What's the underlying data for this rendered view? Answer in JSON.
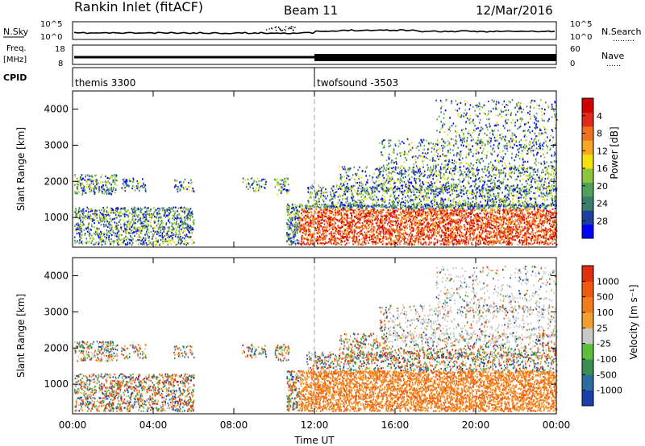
{
  "header": {
    "title": "Rankin Inlet (fitACF)",
    "beam": "Beam 11",
    "date": "12/Mar/2016"
  },
  "aux_panels": {
    "nsky_label": "N.Sky",
    "nsearch_label": "N.Search",
    "nsearch_dots": "………",
    "noise_ticks": [
      "10^5",
      "10^0"
    ],
    "freq_label_line1": "Freq.",
    "freq_label_line2": "[MHz]",
    "freq_ticks": [
      "18",
      "8"
    ],
    "nave_label": "Nave",
    "nave_dots": "……",
    "nave_ticks": [
      "60",
      "0"
    ],
    "cpid_label": "CPID",
    "cpid_1": "themis 3300",
    "cpid_2": "twofsound -3503"
  },
  "chart_data": [
    {
      "type": "heatmap",
      "title": "",
      "ylabel": "Slant Range [km]",
      "xlabel": "",
      "x_ticks": [
        "00:00",
        "04:00",
        "08:00",
        "12:00",
        "16:00",
        "20:00",
        "00:00"
      ],
      "y_ticks": [
        1000,
        2000,
        3000,
        4000
      ],
      "ylim": [
        180,
        4500
      ],
      "colorbar": {
        "label": "Power [dB]",
        "ticks": [
          "4",
          "8",
          "12",
          "16",
          "20",
          "24",
          "28"
        ],
        "colors": [
          "#0000ff",
          "#1f3f9f",
          "#3a7d6a",
          "#52a05f",
          "#8cc63f",
          "#f2e20f",
          "#f5a623",
          "#f07020",
          "#e02a1c",
          "#d00000"
        ]
      }
    },
    {
      "type": "heatmap",
      "title": "",
      "ylabel": "Slant Range [km]",
      "xlabel": "Time UT",
      "x_ticks": [
        "00:00",
        "04:00",
        "08:00",
        "12:00",
        "16:00",
        "20:00",
        "00:00"
      ],
      "y_ticks": [
        1000,
        2000,
        3000,
        4000
      ],
      "ylim": [
        180,
        4500
      ],
      "colorbar": {
        "label": "Velocity [m s⁻¹]",
        "ticks": [
          "1000",
          "500",
          "100",
          "25",
          "-25",
          "-100",
          "-500",
          "-1000"
        ],
        "colors": [
          "#1a3fa8",
          "#2c6e9e",
          "#3b8d55",
          "#5bbf3a",
          "#c8c8c8",
          "#f0a030",
          "#f07c1a",
          "#ee5a10",
          "#e03010"
        ]
      }
    }
  ]
}
